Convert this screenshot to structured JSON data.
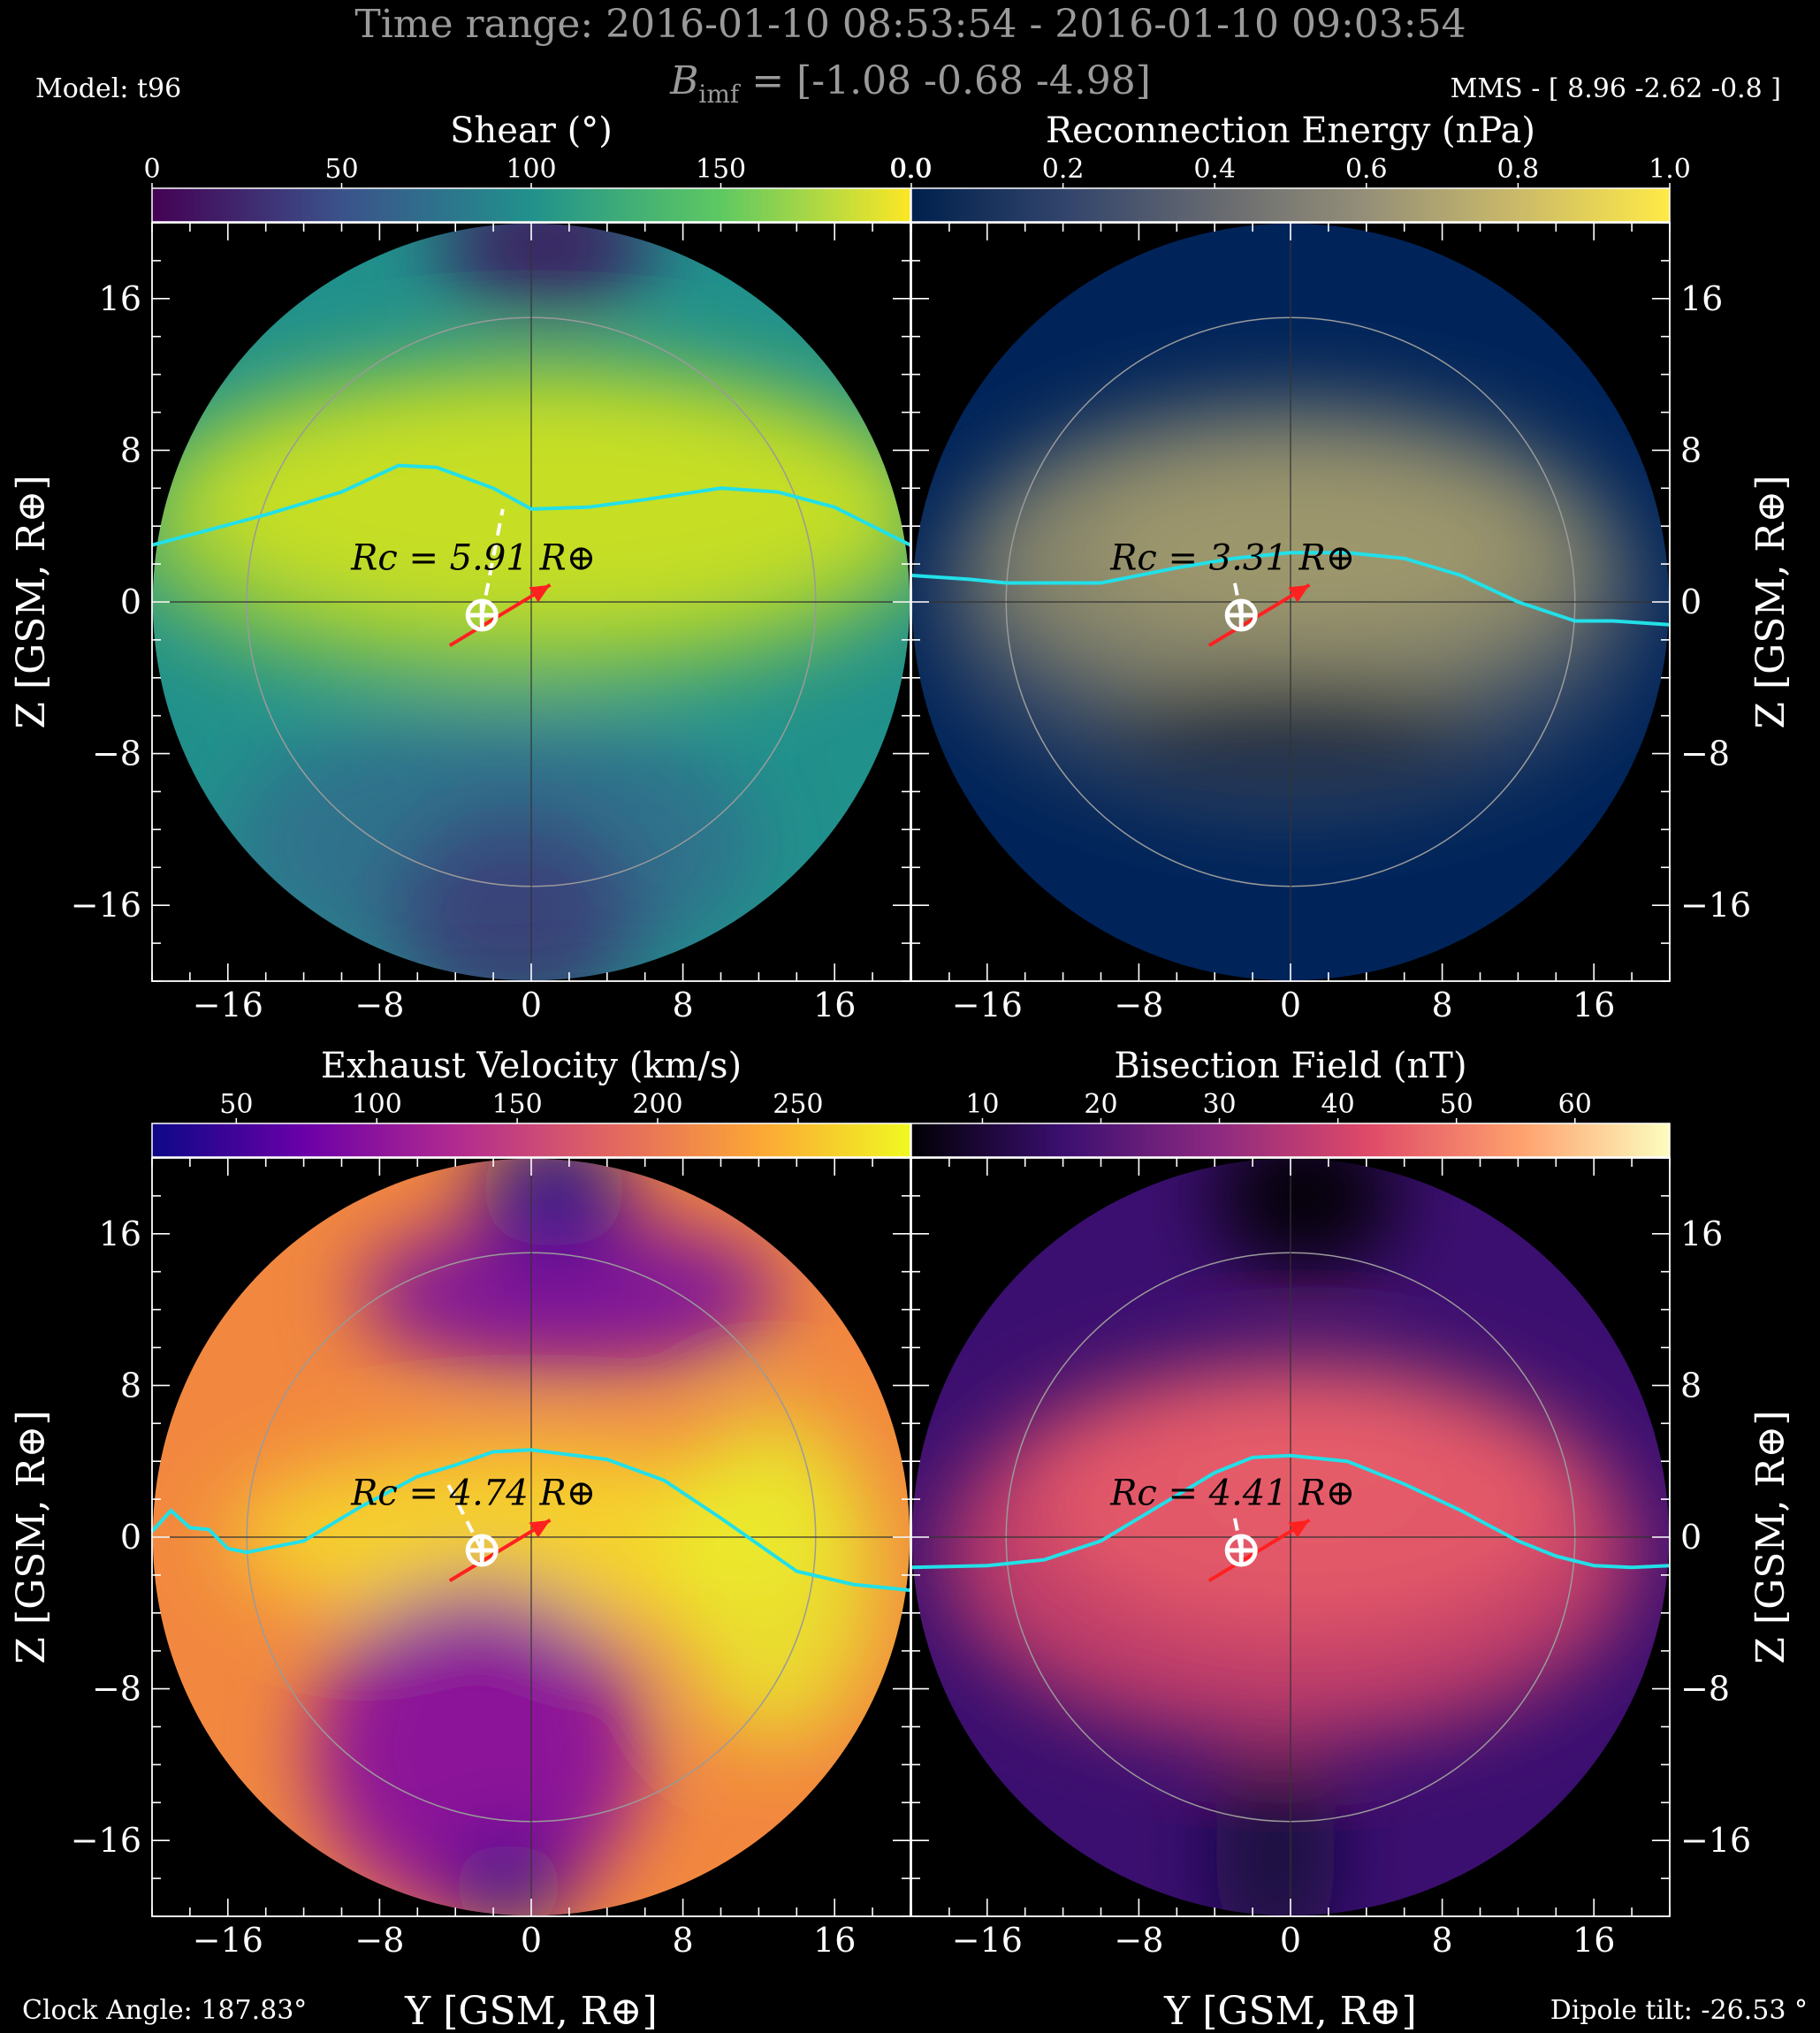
{
  "header": {
    "time_range": "Time range:  2016-01-10 08:53:54 - 2016-01-10 09:03:54",
    "bimf_symbol": "B",
    "bimf_subscript": "imf",
    "bimf_value": " = [-1.08 -0.68 -4.98]",
    "model": "Model: t96",
    "mms": "MMS - [ 8.96 -2.62 -0.8 ]"
  },
  "footer": {
    "clock_angle": "Clock Angle: 187.83°",
    "dipole_tilt": "Dipole tilt: -26.53 °"
  },
  "axes": {
    "xlabel": "Y [GSM, R⊕]",
    "ylabel": "Z [GSM, R⊕]",
    "xlim": [
      -20,
      20
    ],
    "ylim": [
      -20,
      20
    ],
    "ticks": [
      -16,
      -8,
      0,
      8,
      16
    ],
    "tick_labels": [
      "−16",
      "−8",
      "0",
      "8",
      "16"
    ]
  },
  "colors": {
    "background": "#000000",
    "reconnection_line": "#22e0e8",
    "arrow": "#ff2020",
    "marker": "#ffffff",
    "text_dim": "#9a9a9a"
  },
  "chart_data": [
    {
      "type": "heatmap",
      "title": "Shear (°)",
      "colormap": "viridis",
      "colorbar_ticks": [
        "0",
        "50",
        "100",
        "150"
      ],
      "colorbar_end_label": "0.0",
      "rc_label": "Rc = 5.91 R⊕",
      "rc_value": 5.91,
      "line": {
        "x": [
          -20,
          -14,
          -10,
          -7,
          -5,
          -2,
          0,
          3,
          6,
          10,
          13,
          16,
          20
        ],
        "y": [
          3.0,
          4.6,
          5.8,
          7.2,
          7.1,
          6.0,
          4.9,
          5.0,
          5.4,
          6.0,
          5.8,
          5.0,
          3.0
        ]
      },
      "marker": [
        -2.6,
        -0.7
      ],
      "dashed_to": [
        -1.5,
        4.9
      ],
      "arrow_from": [
        -4.3,
        -2.3
      ],
      "arrow_to": [
        1.0,
        0.9
      ]
    },
    {
      "type": "heatmap",
      "title": "Reconnection Energy (nPa)",
      "colormap": "cividis",
      "colorbar_ticks": [
        "0.0",
        "0.2",
        "0.4",
        "0.6",
        "0.8",
        "1.0"
      ],
      "rc_label": "Rc = 3.31 R⊕",
      "rc_value": 3.31,
      "line": {
        "x": [
          -20,
          -17,
          -15,
          -10,
          -6,
          -3,
          0,
          3,
          6,
          9,
          12,
          15,
          17,
          20
        ],
        "y": [
          1.4,
          1.2,
          1.0,
          1.0,
          1.8,
          2.3,
          2.6,
          2.6,
          2.3,
          1.4,
          0.0,
          -1.0,
          -1.0,
          -1.2
        ]
      },
      "marker": [
        -2.6,
        -0.7
      ],
      "dashed_to": [
        -3.0,
        1.3
      ],
      "arrow_from": [
        -4.3,
        -2.3
      ],
      "arrow_to": [
        1.0,
        0.9
      ]
    },
    {
      "type": "heatmap",
      "title": "Exhaust Velocity (km/s)",
      "colormap": "plasma",
      "colorbar_ticks": [
        "50",
        "100",
        "150",
        "200",
        "250"
      ],
      "rc_label": "Rc = 4.74 R⊕",
      "rc_value": 4.74,
      "line": {
        "x": [
          -20,
          -19,
          -18,
          -17,
          -16,
          -15,
          -14,
          -12,
          -9,
          -6,
          -4,
          -2,
          0,
          4,
          7,
          10,
          14,
          17,
          20
        ],
        "y": [
          0.3,
          1.4,
          0.5,
          0.4,
          -0.6,
          -0.8,
          -0.6,
          -0.2,
          1.6,
          3.2,
          3.8,
          4.5,
          4.6,
          4.1,
          3.0,
          1.0,
          -1.8,
          -2.5,
          -2.8
        ]
      },
      "marker": [
        -2.6,
        -0.7
      ],
      "dashed_to": [
        -4.5,
        3.0
      ],
      "arrow_from": [
        -4.3,
        -2.3
      ],
      "arrow_to": [
        1.0,
        0.9
      ]
    },
    {
      "type": "heatmap",
      "title": "Bisection Field (nT)",
      "colormap": "magma",
      "colorbar_ticks": [
        "10",
        "20",
        "30",
        "40",
        "50",
        "60"
      ],
      "rc_label": "Rc = 4.41 R⊕",
      "rc_value": 4.41,
      "line": {
        "x": [
          -20,
          -16,
          -13,
          -10,
          -7,
          -4,
          -2,
          0,
          3,
          6,
          9,
          12,
          14,
          16,
          18,
          20
        ],
        "y": [
          -1.6,
          -1.5,
          -1.2,
          -0.2,
          1.6,
          3.4,
          4.2,
          4.3,
          4.0,
          2.8,
          1.4,
          -0.2,
          -1.0,
          -1.5,
          -1.6,
          -1.5
        ]
      },
      "marker": [
        -2.6,
        -0.7
      ],
      "dashed_to": [
        -3.0,
        1.3
      ],
      "arrow_from": [
        -4.3,
        -2.3
      ],
      "arrow_to": [
        1.0,
        0.9
      ]
    }
  ]
}
